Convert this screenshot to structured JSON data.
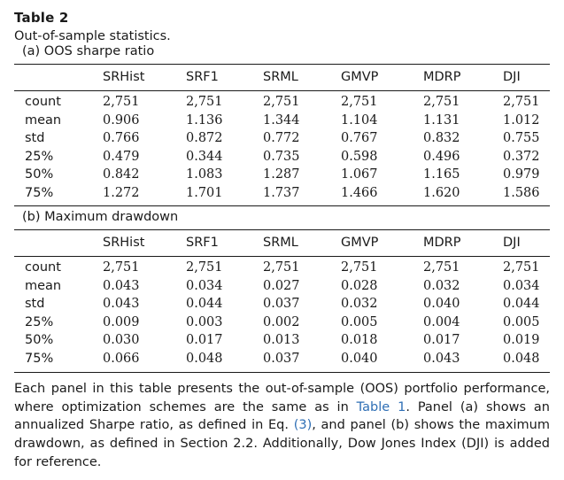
{
  "table": {
    "title": "Table 2",
    "caption": "Out-of-sample statistics."
  },
  "panel_a": {
    "label": "(a) OOS sharpe ratio",
    "headers": [
      "",
      "SRHist",
      "SRF1",
      "SRML",
      "GMVP",
      "MDRP",
      "DJI"
    ],
    "rows": [
      [
        "count",
        "2,751",
        "2,751",
        "2,751",
        "2,751",
        "2,751",
        "2,751"
      ],
      [
        "mean",
        "0.906",
        "1.136",
        "1.344",
        "1.104",
        "1.131",
        "1.012"
      ],
      [
        "std",
        "0.766",
        "0.872",
        "0.772",
        "0.767",
        "0.832",
        "0.755"
      ],
      [
        "25%",
        "0.479",
        "0.344",
        "0.735",
        "0.598",
        "0.496",
        "0.372"
      ],
      [
        "50%",
        "0.842",
        "1.083",
        "1.287",
        "1.067",
        "1.165",
        "0.979"
      ],
      [
        "75%",
        "1.272",
        "1.701",
        "1.737",
        "1.466",
        "1.620",
        "1.586"
      ]
    ]
  },
  "panel_b": {
    "label": "(b) Maximum drawdown",
    "headers": [
      "",
      "SRHist",
      "SRF1",
      "SRML",
      "GMVP",
      "MDRP",
      "DJI"
    ],
    "rows": [
      [
        "count",
        "2,751",
        "2,751",
        "2,751",
        "2,751",
        "2,751",
        "2,751"
      ],
      [
        "mean",
        "0.043",
        "0.034",
        "0.027",
        "0.028",
        "0.032",
        "0.034"
      ],
      [
        "std",
        "0.043",
        "0.044",
        "0.037",
        "0.032",
        "0.040",
        "0.044"
      ],
      [
        "25%",
        "0.009",
        "0.003",
        "0.002",
        "0.005",
        "0.004",
        "0.005"
      ],
      [
        "50%",
        "0.030",
        "0.017",
        "0.013",
        "0.018",
        "0.017",
        "0.019"
      ],
      [
        "75%",
        "0.066",
        "0.048",
        "0.037",
        "0.040",
        "0.043",
        "0.048"
      ]
    ]
  },
  "footnote": {
    "part1": "Each panel in this table presents the out-of-sample (OOS) portfolio performance, where optimization schemes are the same as in ",
    "link1": "Table 1",
    "part2": ". Panel (a) shows an annualized Sharpe ratio, as defined in Eq. ",
    "link2": "(3)",
    "part3": ", and panel (b) shows the maximum drawdown, as defined in Section 2.2. Additionally, Dow Jones Index (DJI) is added for reference."
  },
  "colors": {
    "text": "#1a1a1a",
    "link": "#2f6fb5",
    "rule": "#1a1a1a"
  }
}
